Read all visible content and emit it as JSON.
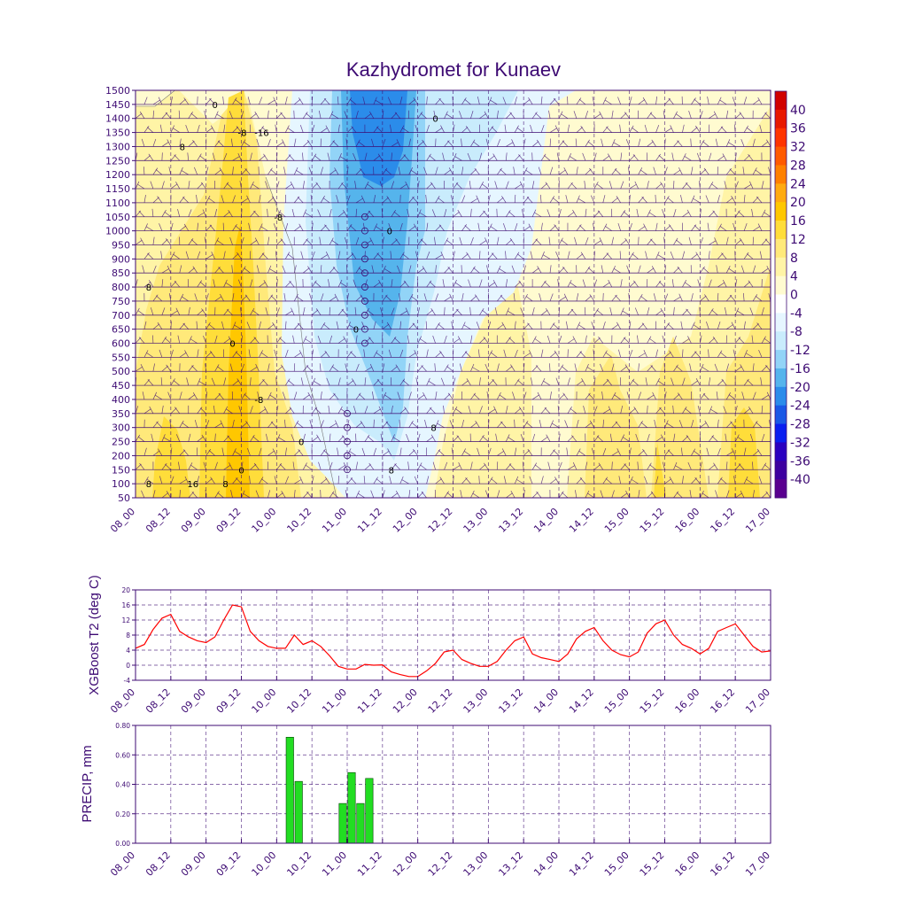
{
  "colors": {
    "axis": "#3d0a73",
    "grid": "#3d0a73",
    "t2_line": "#ff0000",
    "precip_bar": "#22dd22",
    "precip_bar_stroke": "#004400"
  },
  "chart_data": [
    {
      "type": "heatmap",
      "title": "Kazhydromet for Kunaev",
      "x_ticks": [
        "08_00",
        "08_12",
        "09_00",
        "09_12",
        "10_00",
        "10_12",
        "11_00",
        "11_12",
        "12_00",
        "12_12",
        "13_00",
        "13_12",
        "14_00",
        "14_12",
        "15_00",
        "15_12",
        "16_00",
        "16_12",
        "17_00"
      ],
      "y_ticks": [
        50,
        100,
        150,
        200,
        250,
        300,
        350,
        400,
        450,
        500,
        550,
        600,
        650,
        700,
        750,
        800,
        850,
        900,
        950,
        1000,
        1050,
        1100,
        1150,
        1200,
        1250,
        1300,
        1350,
        1400,
        1450,
        1500
      ],
      "ylim": [
        50,
        1500
      ],
      "colorbar_labels": [
        "40",
        "36",
        "32",
        "28",
        "24",
        "20",
        "16",
        "12",
        "8",
        "4",
        "0",
        "-4",
        "-8",
        "-12",
        "-16",
        "-20",
        "-24",
        "-28",
        "-32",
        "-36",
        "-40"
      ],
      "colorbar_colors": [
        "#d10000",
        "#e81800",
        "#ff3300",
        "#ff5a00",
        "#ff8000",
        "#ffaa10",
        "#ffc700",
        "#ffdd3a",
        "#ffe97a",
        "#fff4a6",
        "#fffbd0",
        "#ffffff",
        "#e6f6ff",
        "#c9ecfc",
        "#92d4f7",
        "#55b4ec",
        "#2b8cea",
        "#1a58e6",
        "#0a1ef0",
        "#2a00c0",
        "#3d00a0",
        "#5a0090"
      ],
      "contour_labels": [
        {
          "text": "8",
          "x": 1.5,
          "y": 100
        },
        {
          "text": "8",
          "x": 1.5,
          "y": 800
        },
        {
          "text": "8",
          "x": 5.3,
          "y": 1300
        },
        {
          "text": "16",
          "x": 6.5,
          "y": 100
        },
        {
          "text": "0",
          "x": 9.0,
          "y": 1450
        },
        {
          "text": "8",
          "x": 10.2,
          "y": 100
        },
        {
          "text": "0",
          "x": 11.0,
          "y": 600
        },
        {
          "text": "0",
          "x": 12.0,
          "y": 150
        },
        {
          "text": "-8",
          "x": 12.1,
          "y": 1350
        },
        {
          "text": "-16",
          "x": 14.3,
          "y": 1350
        },
        {
          "text": "-8",
          "x": 14.0,
          "y": 400
        },
        {
          "text": "-8",
          "x": 16.2,
          "y": 1050
        },
        {
          "text": "0",
          "x": 18.8,
          "y": 250
        },
        {
          "text": "0",
          "x": 25.0,
          "y": 650
        },
        {
          "text": "0",
          "x": 28.8,
          "y": 1000
        },
        {
          "text": "8",
          "x": 29.0,
          "y": 150
        },
        {
          "text": "8",
          "x": 33.8,
          "y": 300
        },
        {
          "text": "0",
          "x": 34.0,
          "y": 1400
        }
      ]
    },
    {
      "type": "line",
      "ylabel": "XGBoost T2 (deg C)",
      "x_ticks": [
        "08_00",
        "08_12",
        "09_00",
        "09_12",
        "10_00",
        "10_12",
        "11_00",
        "11_12",
        "12_00",
        "12_12",
        "13_00",
        "13_12",
        "14_00",
        "14_12",
        "15_00",
        "15_12",
        "16_00",
        "16_12",
        "17_00"
      ],
      "y_ticks": [
        "-4",
        "0",
        "4",
        "8",
        "12",
        "16",
        "20"
      ],
      "ylim": [
        -4,
        20
      ],
      "series": [
        {
          "x": [
            0,
            1,
            2,
            3,
            4,
            5,
            6,
            7,
            8,
            9,
            10,
            11,
            12,
            13,
            14,
            15,
            16,
            17,
            18,
            19,
            20,
            21,
            22,
            23,
            24,
            25,
            26,
            27,
            28,
            29,
            30,
            31,
            32,
            33,
            34,
            35,
            36,
            37,
            38,
            39,
            40,
            41,
            42,
            43,
            44,
            45,
            46,
            47,
            48,
            49,
            50,
            51,
            52,
            53,
            54,
            55,
            56,
            57,
            58,
            59,
            60,
            61,
            62,
            63,
            64,
            65,
            66,
            67,
            68,
            69,
            70,
            71,
            72
          ],
          "values": [
            4.5,
            5.5,
            9.5,
            12.5,
            13.5,
            9.0,
            7.5,
            6.5,
            6.0,
            7.5,
            12.0,
            16.0,
            15.5,
            9.0,
            6.5,
            5.0,
            4.5,
            4.5,
            8.0,
            5.5,
            6.5,
            5.0,
            2.5,
            -0.3,
            -1.0,
            -1.0,
            0.2,
            0.0,
            0.1,
            -1.8,
            -2.5,
            -3.0,
            -3.0,
            -1.5,
            0.5,
            3.5,
            4.0,
            1.5,
            0.5,
            -0.3,
            -0.3,
            1.0,
            4.0,
            6.5,
            7.5,
            3.0,
            2.0,
            1.5,
            1.0,
            3.0,
            7.0,
            9.0,
            10.0,
            6.5,
            4.0,
            2.8,
            2.2,
            3.5,
            8.5,
            11.0,
            12.0,
            8.0,
            5.5,
            4.5,
            3.0,
            4.5,
            9.0,
            10.0,
            11.0,
            8.0,
            5.0,
            3.5,
            3.8
          ]
        }
      ]
    },
    {
      "type": "bar",
      "ylabel": "PRECIP, mm",
      "x_ticks": [
        "08_00",
        "08_12",
        "09_00",
        "09_12",
        "10_00",
        "10_12",
        "11_00",
        "11_12",
        "12_00",
        "12_12",
        "13_00",
        "13_12",
        "14_00",
        "14_12",
        "15_00",
        "15_12",
        "16_00",
        "16_12",
        "17_00"
      ],
      "y_ticks": [
        "0.00",
        "0.20",
        "0.40",
        "0.60",
        "0.80"
      ],
      "ylim": [
        0,
        0.8
      ],
      "bars": [
        {
          "x": 18,
          "value": 0.72
        },
        {
          "x": 19,
          "value": 0.42
        },
        {
          "x": 24,
          "value": 0.27
        },
        {
          "x": 25,
          "value": 0.48
        },
        {
          "x": 26,
          "value": 0.27
        },
        {
          "x": 27,
          "value": 0.44
        }
      ]
    }
  ]
}
